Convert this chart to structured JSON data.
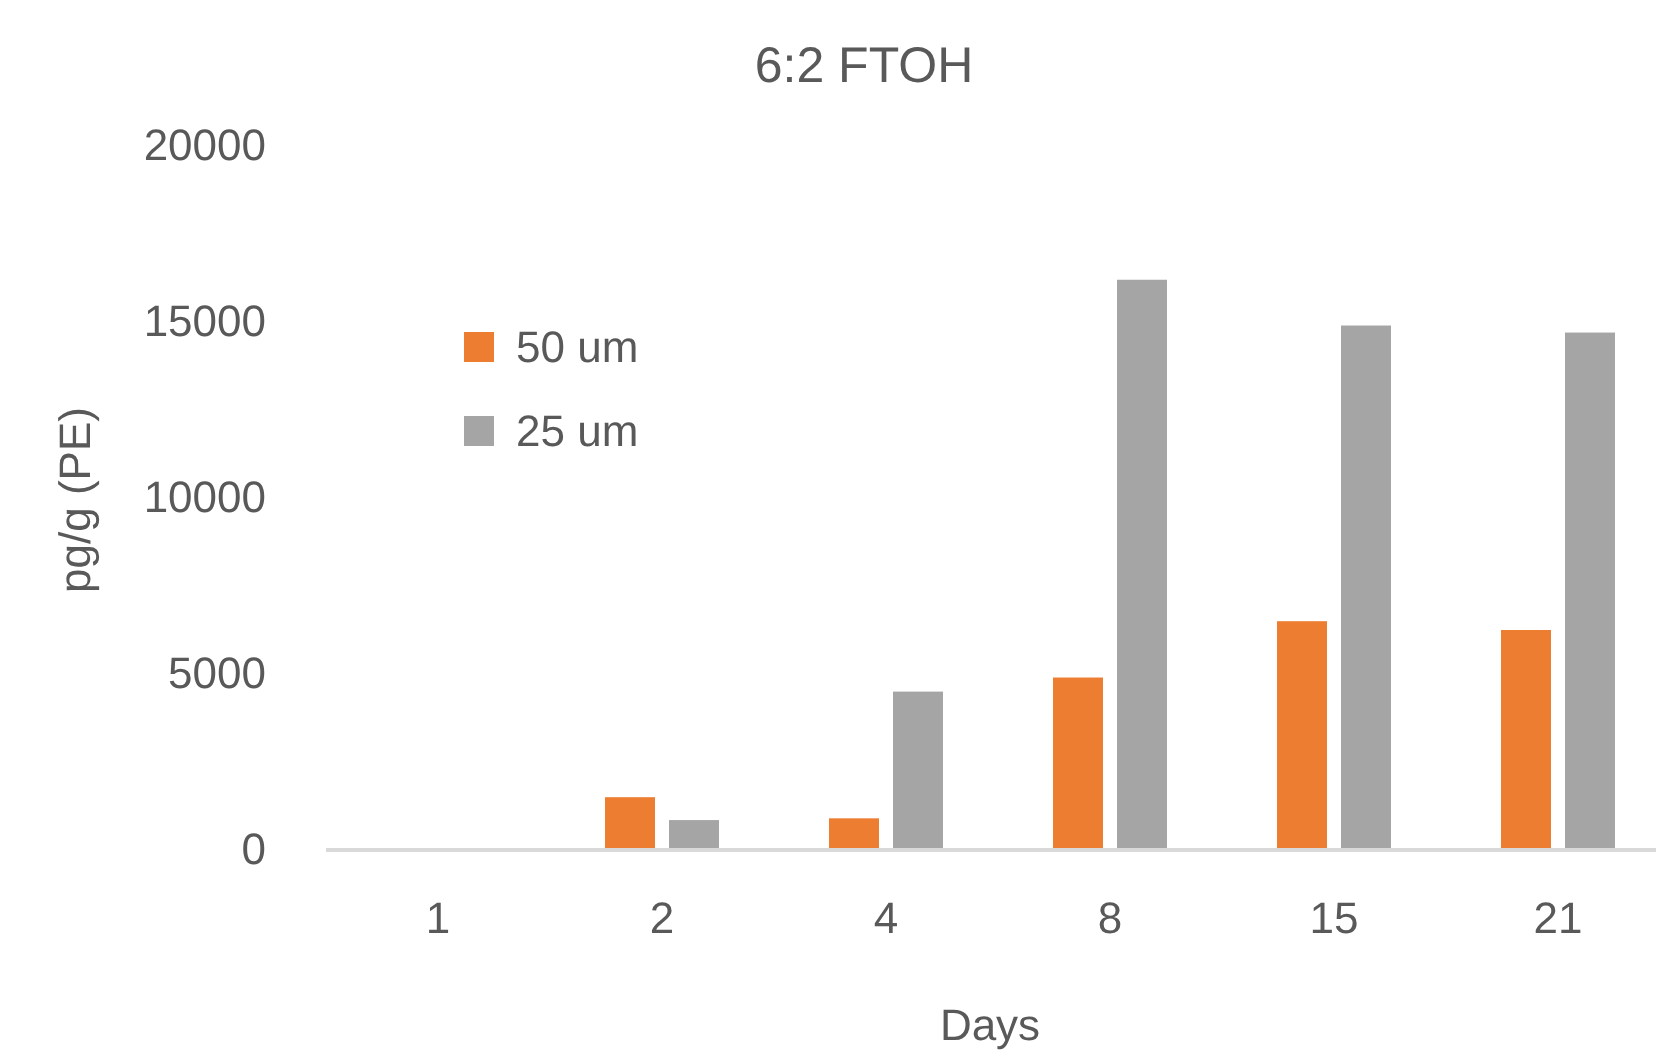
{
  "chart_data": {
    "type": "bar",
    "title": "6:2 FTOH",
    "xlabel": "Days",
    "ylabel": "pg/g (PE)",
    "categories": [
      "1",
      "2",
      "4",
      "8",
      "15",
      "21"
    ],
    "series": [
      {
        "name": "50 um",
        "color": "#ed7d31",
        "values": [
          null,
          1500,
          900,
          4900,
          6500,
          6250
        ]
      },
      {
        "name": "25 um",
        "color": "#a5a5a5",
        "values": [
          null,
          850,
          4500,
          16200,
          14900,
          14700
        ]
      }
    ],
    "ylim": [
      0,
      20000
    ],
    "yticks": [
      0,
      5000,
      10000,
      15000,
      20000
    ],
    "grid": false,
    "legend": "top left"
  }
}
